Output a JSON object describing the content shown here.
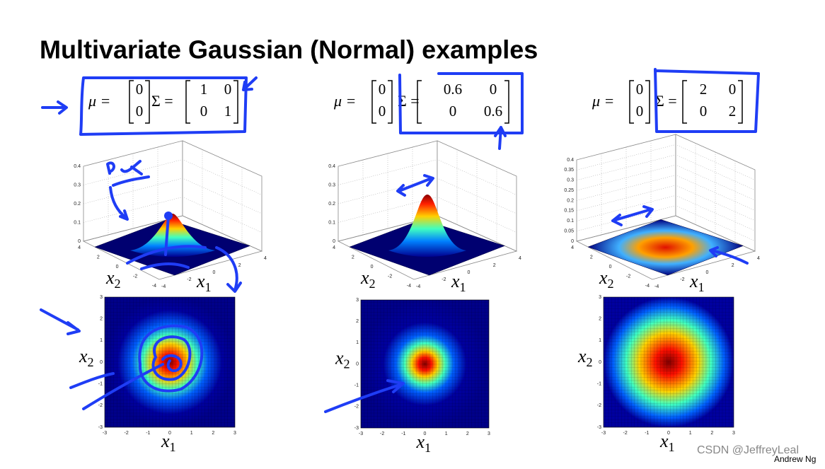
{
  "title": "Multivariate Gaussian (Normal) examples",
  "panels": [
    {
      "mu_symbol": "μ =",
      "sigma_symbol": "Σ =",
      "mu": [
        "0",
        "0"
      ],
      "sigma": [
        [
          "1",
          "0"
        ],
        [
          "0",
          "1"
        ]
      ],
      "surface": {
        "zticks": [
          "0",
          "0.1",
          "0.2",
          "0.3",
          "0.4"
        ],
        "x1_ticks": [
          "-4",
          "-2",
          "0",
          "2",
          "4"
        ],
        "x2_ticks": [
          "4",
          "2",
          "0",
          "-2",
          "-4"
        ],
        "x1_label": {
          "base": "x",
          "sub": "1"
        },
        "x2_label": {
          "base": "x",
          "sub": "2"
        }
      },
      "heatmap": {
        "xticks": [
          "-3",
          "-2",
          "-1",
          "0",
          "1",
          "2",
          "3"
        ],
        "yticks": [
          "3",
          "2",
          "1",
          "0",
          "-1",
          "-2",
          "-3"
        ],
        "x_label": {
          "base": "x",
          "sub": "1"
        },
        "y_label": {
          "base": "x",
          "sub": "2"
        }
      }
    },
    {
      "mu_symbol": "μ =",
      "sigma_symbol": "Σ =",
      "mu": [
        "0",
        "0"
      ],
      "sigma": [
        [
          "0.6",
          "0"
        ],
        [
          "0",
          "0.6"
        ]
      ],
      "surface": {
        "zticks": [
          "0",
          "0.1",
          "0.2",
          "0.3",
          "0.4"
        ],
        "x1_ticks": [
          "-4",
          "-2",
          "0",
          "2",
          "4"
        ],
        "x2_ticks": [
          "4",
          "2",
          "0",
          "-2",
          "-4"
        ],
        "x1_label": {
          "base": "x",
          "sub": "1"
        },
        "x2_label": {
          "base": "x",
          "sub": "2"
        }
      },
      "heatmap": {
        "xticks": [
          "-3",
          "-2",
          "-1",
          "0",
          "1",
          "2",
          "3"
        ],
        "yticks": [
          "3",
          "2",
          "1",
          "0",
          "-1",
          "-2",
          "-3"
        ],
        "x_label": {
          "base": "x",
          "sub": "1"
        },
        "y_label": {
          "base": "x",
          "sub": "2"
        }
      }
    },
    {
      "mu_symbol": "μ =",
      "sigma_symbol": "Σ =",
      "mu": [
        "0",
        "0"
      ],
      "sigma": [
        [
          "2",
          "0"
        ],
        [
          "0",
          "2"
        ]
      ],
      "surface": {
        "zticks": [
          "0",
          "0.05",
          "0.1",
          "0.15",
          "0.2",
          "0.25",
          "0.3",
          "0.35",
          "0.4"
        ],
        "x1_ticks": [
          "-4",
          "-2",
          "0",
          "2",
          "4"
        ],
        "x2_ticks": [
          "4",
          "2",
          "0",
          "-2",
          "-4"
        ],
        "x1_label": {
          "base": "x",
          "sub": "1"
        },
        "x2_label": {
          "base": "x",
          "sub": "2"
        }
      },
      "heatmap": {
        "xticks": [
          "-3",
          "-2",
          "-1",
          "0",
          "1",
          "2",
          "3"
        ],
        "yticks": [
          "3",
          "2",
          "1",
          "0",
          "-1",
          "-2",
          "-3"
        ],
        "x_label": {
          "base": "x",
          "sub": "1"
        },
        "y_label": {
          "base": "x",
          "sub": "2"
        }
      }
    }
  ],
  "footer": "Andrew Ng",
  "watermark": "CSDN @JeffreyLeal"
}
